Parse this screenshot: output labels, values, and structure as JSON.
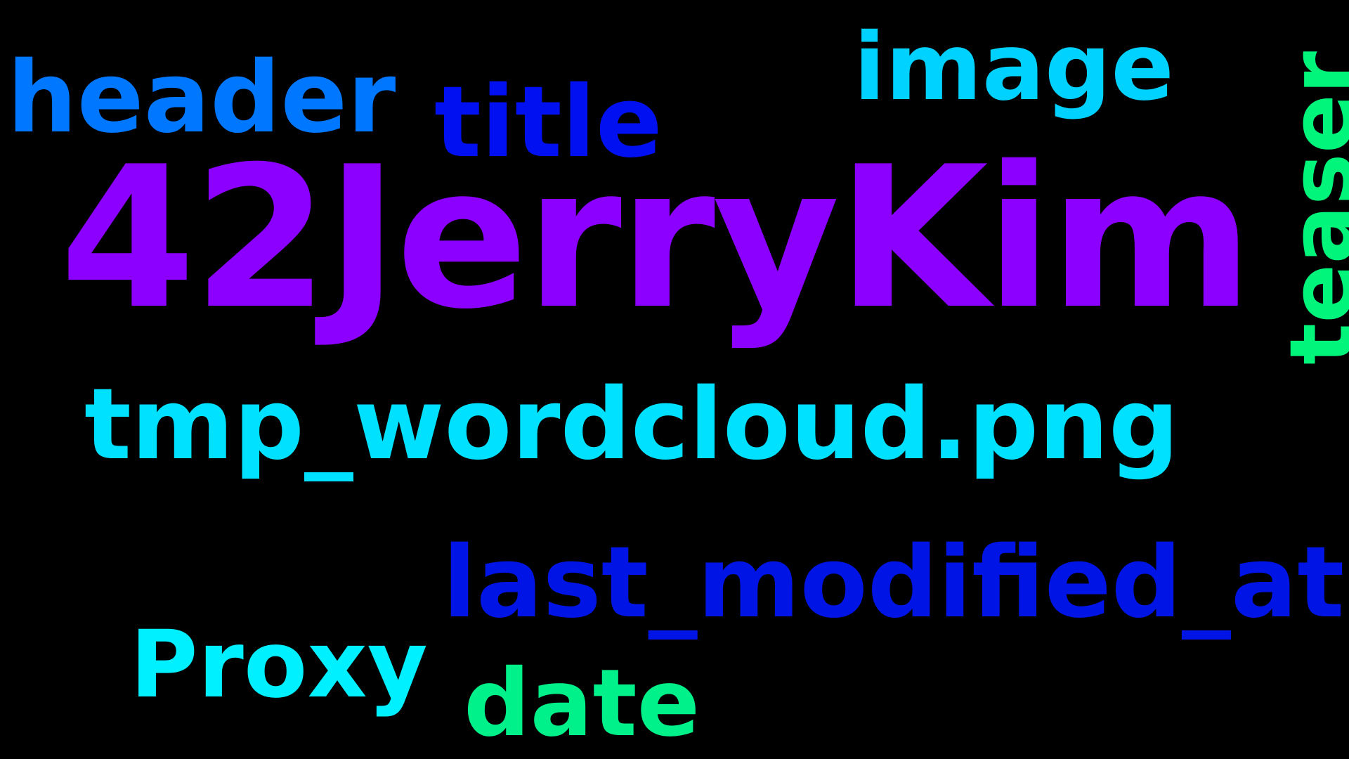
{
  "background": "#000000",
  "words": {
    "w1": {
      "text": "42JerryKim",
      "color": "#8B00FF"
    },
    "w2": {
      "text": "header",
      "color": "#0077FF"
    },
    "w3": {
      "text": "title",
      "color": "#0010F0"
    },
    "w4": {
      "text": "image",
      "color": "#00D2FF"
    },
    "w5": {
      "text": "teaser",
      "color": "#00F57A"
    },
    "w6": {
      "text": "tmp_wordcloud.png",
      "color": "#00E1FF"
    },
    "w7": {
      "text": "last_modified_at",
      "color": "#0014E6"
    },
    "w8": {
      "text": "Proxy",
      "color": "#00F0FF"
    },
    "w9": {
      "text": "date",
      "color": "#00F08A"
    }
  }
}
